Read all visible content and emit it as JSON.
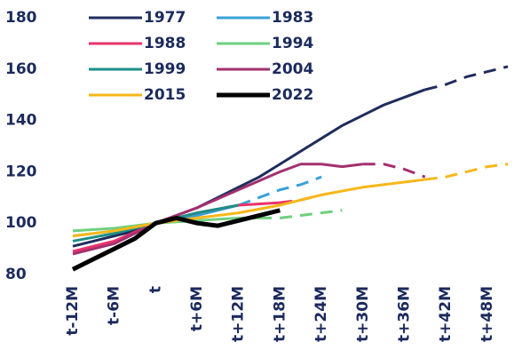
{
  "chart_data": {
    "type": "line",
    "xlim": [
      -12,
      53
    ],
    "ylim": [
      80,
      180
    ],
    "yticks": [
      80,
      100,
      120,
      140,
      160,
      180
    ],
    "xticks": [
      {
        "value": -12,
        "label": "t-12M"
      },
      {
        "value": -6,
        "label": "t-6M"
      },
      {
        "value": 0,
        "label": "t"
      },
      {
        "value": 6,
        "label": "t+6M"
      },
      {
        "value": 12,
        "label": "t+12M"
      },
      {
        "value": 18,
        "label": "t+18M"
      },
      {
        "value": 24,
        "label": "t+24M"
      },
      {
        "value": 30,
        "label": "t+30M"
      },
      {
        "value": 36,
        "label": "t+36M"
      },
      {
        "value": 42,
        "label": "t+42M"
      },
      {
        "value": 48,
        "label": "t+48M"
      }
    ],
    "grid": false,
    "series": [
      {
        "name": "1977",
        "color": "#1f2d5c",
        "width": 3,
        "dash_from": 39,
        "x": [
          -12,
          -9,
          -6,
          -3,
          0,
          3,
          6,
          9,
          12,
          15,
          18,
          21,
          24,
          27,
          30,
          33,
          36,
          39,
          42,
          45,
          48,
          51
        ],
        "values": [
          91,
          93,
          95,
          97,
          100,
          103,
          106,
          110,
          114,
          118,
          123,
          128,
          133,
          138,
          142,
          146,
          149,
          152,
          154,
          157,
          159,
          161
        ]
      },
      {
        "name": "1983",
        "color": "#3aa0d8",
        "width": 3,
        "dash_from": 12,
        "x": [
          -12,
          -6,
          0,
          6,
          12,
          15,
          18,
          21,
          24
        ],
        "values": [
          95,
          97,
          100,
          103,
          107,
          110,
          113,
          115,
          118
        ]
      },
      {
        "name": "1988",
        "color": "#e8336b",
        "width": 3,
        "dash_from": 18,
        "x": [
          -12,
          -6,
          0,
          6,
          12,
          18,
          21,
          24
        ],
        "values": [
          89,
          93,
          100,
          104,
          107,
          108,
          109,
          111
        ]
      },
      {
        "name": "1994",
        "color": "#6fcf7f",
        "width": 3,
        "dash_from": 15,
        "x": [
          -12,
          -6,
          0,
          6,
          12,
          15,
          18,
          24,
          27
        ],
        "values": [
          97,
          98,
          100,
          101,
          102,
          102,
          102,
          104,
          105
        ]
      },
      {
        "name": "1999",
        "color": "#1c8f87",
        "width": 3,
        "dash_from": 12,
        "x": [
          -12,
          -6,
          0,
          6,
          12
        ],
        "values": [
          93,
          96,
          100,
          104,
          107
        ]
      },
      {
        "name": "2004",
        "color": "#a3306f",
        "width": 3,
        "dash_from": 30,
        "x": [
          -12,
          -6,
          0,
          6,
          12,
          18,
          21,
          24,
          27,
          30,
          33,
          36,
          39
        ],
        "values": [
          88,
          92,
          100,
          106,
          113,
          120,
          123,
          123,
          122,
          123,
          123,
          121,
          118
        ]
      },
      {
        "name": "2015",
        "color": "#f7b719",
        "width": 3,
        "dash_from": 39,
        "x": [
          -12,
          -6,
          0,
          6,
          12,
          18,
          24,
          30,
          36,
          39,
          42,
          45,
          48,
          51
        ],
        "values": [
          95,
          97,
          100,
          102,
          104,
          107,
          111,
          114,
          116,
          117,
          118,
          120,
          122,
          123
        ]
      },
      {
        "name": "2022",
        "color": "#000000",
        "width": 5,
        "dash_from": 99,
        "x": [
          -12,
          -9,
          -6,
          -3,
          0,
          3,
          6,
          9,
          12,
          15,
          18
        ],
        "values": [
          82,
          86,
          90,
          94,
          100,
          102,
          100,
          99,
          101,
          103,
          105
        ]
      }
    ]
  }
}
